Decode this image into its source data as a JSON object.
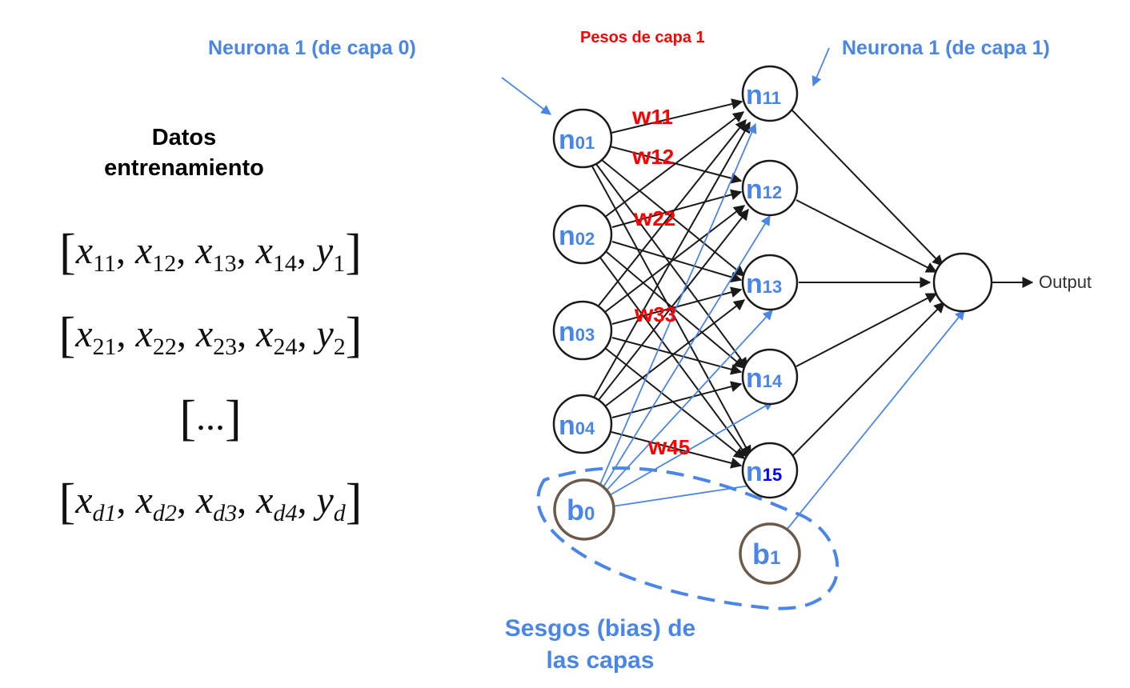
{
  "labels": {
    "neuron_layer0": "Neurona 1 (de capa 0)",
    "weights_layer1": "Pesos de capa 1",
    "neuron_layer1": "Neurona 1 (de capa 1)",
    "biases_line1": "Sesgos (bias) de",
    "biases_line2": "las capas",
    "output": "Output"
  },
  "dataset": {
    "title_line1": "Datos",
    "title_line2": "entrenamiento",
    "rows": [
      {
        "x": [
          "x",
          "x",
          "x",
          "x"
        ],
        "xsub": [
          "11",
          "12",
          "13",
          "14"
        ],
        "y": "y",
        "ysub": "1"
      },
      {
        "x": [
          "x",
          "x",
          "x",
          "x"
        ],
        "xsub": [
          "21",
          "22",
          "23",
          "24"
        ],
        "y": "y",
        "ysub": "2"
      },
      {
        "x": [
          "x",
          "x",
          "x",
          "x"
        ],
        "xsub": [
          "d1",
          "d2",
          "d3",
          "d4"
        ],
        "y": "y",
        "ysub": "d"
      }
    ],
    "ellipsis": "...",
    "comma": ","
  },
  "network": {
    "input_nodes": [
      {
        "name": "n",
        "sub": "01"
      },
      {
        "name": "n",
        "sub": "02"
      },
      {
        "name": "n",
        "sub": "03"
      },
      {
        "name": "n",
        "sub": "04"
      }
    ],
    "hidden_nodes": [
      {
        "name": "n",
        "sub": "11"
      },
      {
        "name": "n",
        "sub": "12"
      },
      {
        "name": "n",
        "sub": "13"
      },
      {
        "name": "n",
        "sub": "14"
      },
      {
        "name": "n",
        "sub": "15"
      }
    ],
    "bias_nodes": [
      {
        "name": "b",
        "sub": "0"
      },
      {
        "name": "b",
        "sub": "1"
      }
    ],
    "weights": [
      {
        "name": "w",
        "sub": "11"
      },
      {
        "name": "w",
        "sub": "12"
      },
      {
        "name": "w",
        "sub": "22"
      },
      {
        "name": "w",
        "sub": "33"
      },
      {
        "name": "w",
        "sub": "45"
      }
    ]
  },
  "colors": {
    "blue": "#4a86e8",
    "red": "#ff0000",
    "dark_blue": "#0000ff",
    "bias_stroke": "#6b5a4a",
    "node_stroke": "#1a1a1a"
  }
}
